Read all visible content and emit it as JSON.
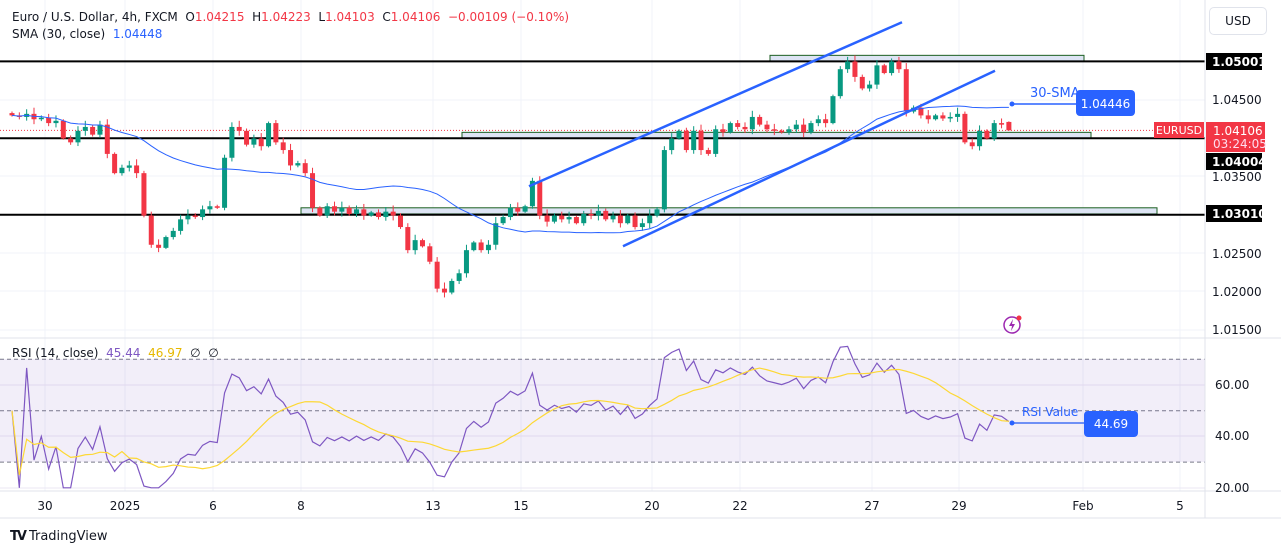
{
  "header": {
    "symbol": "Euro / U.S. Dollar, 4h, FXCM",
    "o_label": "O",
    "open": "1.04215",
    "h_label": "H",
    "high": "1.04223",
    "l_label": "L",
    "low": "1.04103",
    "c_label": "C",
    "close": "1.04106",
    "change": "−0.00109 (−0.10%)",
    "sma_label": "SMA (30, close)",
    "sma_value": "1.04448"
  },
  "currency_button": "USD",
  "price_axis": {
    "ticks": [
      "1.04500",
      "1.03500",
      "1.02500",
      "1.02000",
      "1.01500"
    ],
    "levels": [
      "1.05001",
      "1.04004",
      "1.03010"
    ],
    "current_symbol": "EURUSD",
    "current_price": "1.04106",
    "countdown": "03:24:05"
  },
  "annotations": {
    "sma_text": "30-SMA",
    "sma_value": "1.04446",
    "rsi_text": "RSI Value",
    "rsi_value": "44.69"
  },
  "rsi_panel": {
    "label": "RSI (14, close)",
    "rsi": "45.44",
    "rsi_ma": "46.97",
    "extra1": "∅",
    "extra2": "∅",
    "ticks": [
      "60.00",
      "40.00",
      "20.00"
    ]
  },
  "time_axis": [
    "30",
    "2025",
    "6",
    "8",
    "13",
    "15",
    "20",
    "22",
    "27",
    "29",
    "Feb",
    "5"
  ],
  "footer": {
    "logo": "TV",
    "brand": "TradingView"
  },
  "colors": {
    "up": "#089981",
    "down": "#f23645",
    "sma": "#2962ff",
    "rsi": "#7e57c2",
    "rsi_ma": "#fdd835",
    "level": "#000000",
    "zone": "#1b5e20"
  },
  "chart_data": [
    {
      "type": "candlestick",
      "interval": "4h",
      "ylim": [
        1.013,
        1.054
      ],
      "horizontal_levels": [
        1.05001,
        1.04004,
        1.0301
      ],
      "zones": [
        [
          1.05,
          1.0508
        ],
        [
          1.04,
          1.0408
        ],
        [
          1.0302,
          1.031
        ]
      ],
      "trend_channel": [
        [
          1.0338,
          1.0551
        ],
        [
          1.026,
          1.0488
        ]
      ],
      "last_candle": {
        "open": 1.04215,
        "high": 1.04223,
        "low": 1.04103,
        "close": 1.04106
      },
      "closes": [
        1.043,
        1.0428,
        1.0432,
        1.0425,
        1.0427,
        1.042,
        1.0423,
        1.04,
        1.0395,
        1.041,
        1.0415,
        1.0405,
        1.0418,
        1.038,
        1.0355,
        1.0362,
        1.0365,
        1.0355,
        1.03,
        1.0262,
        1.0258,
        1.0272,
        1.028,
        1.0295,
        1.03,
        1.0298,
        1.0308,
        1.0312,
        1.031,
        1.0375,
        1.0415,
        1.041,
        1.0392,
        1.04,
        1.039,
        1.042,
        1.0395,
        1.0385,
        1.0365,
        1.0368,
        1.0355,
        1.031,
        1.03,
        1.0312,
        1.0305,
        1.031,
        1.0302,
        1.0308,
        1.03,
        1.0304,
        1.0298,
        1.0305,
        1.03,
        1.0285,
        1.0255,
        1.0268,
        1.026,
        1.024,
        1.0205,
        1.02,
        1.0215,
        1.0225,
        1.0255,
        1.0265,
        1.0255,
        1.0262,
        1.029,
        1.0298,
        1.031,
        1.0305,
        1.0312,
        1.0345,
        1.03,
        1.0292,
        1.03,
        1.0295,
        1.0298,
        1.029,
        1.0302,
        1.03,
        1.0306,
        1.0295,
        1.03,
        1.029,
        1.03,
        1.0285,
        1.029,
        1.03,
        1.0308,
        1.0385,
        1.04,
        1.041,
        1.0385,
        1.041,
        1.0385,
        1.038,
        1.0412,
        1.0408,
        1.042,
        1.0415,
        1.0412,
        1.0428,
        1.0418,
        1.0412,
        1.041,
        1.0408,
        1.0412,
        1.0418,
        1.0408,
        1.042,
        1.0425,
        1.042,
        1.0455,
        1.049,
        1.05,
        1.048,
        1.0465,
        1.047,
        1.0495,
        1.0485,
        1.05,
        1.049,
        1.0435,
        1.044,
        1.043,
        1.0425,
        1.043,
        1.0426,
        1.0428,
        1.0432,
        1.0395,
        1.039,
        1.041,
        1.04,
        1.042,
        1.0418,
        1.04106
      ],
      "sma_period": 30
    },
    {
      "type": "line",
      "title": "RSI (14, close)",
      "ylim": [
        17,
        76
      ],
      "bands": [
        30,
        50,
        70
      ],
      "last_values": {
        "rsi": 45.44,
        "rsi_ma": 46.97
      }
    }
  ]
}
